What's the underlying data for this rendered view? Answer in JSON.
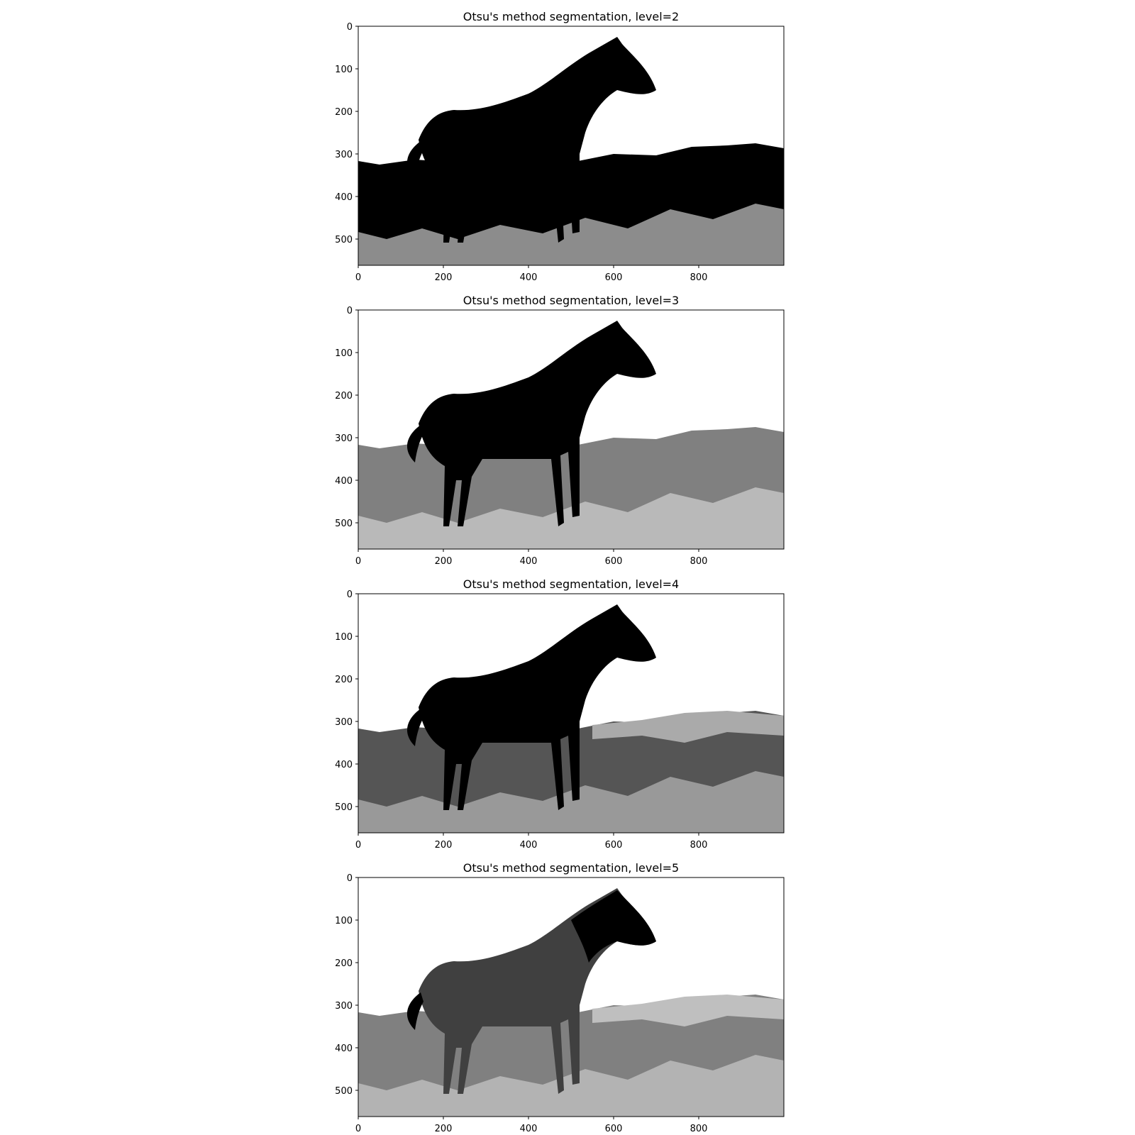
{
  "chart_data": [
    {
      "type": "image",
      "title": "Otsu's method segmentation, level=2",
      "xticks": [
        0,
        200,
        400,
        600,
        800
      ],
      "yticks": [
        0,
        100,
        200,
        300,
        400,
        500
      ],
      "xlim": [
        0,
        1000
      ],
      "ylim": [
        562,
        0
      ],
      "levels": 2,
      "gray_values": [
        "#000000",
        "#ffffff"
      ]
    },
    {
      "type": "image",
      "title": "Otsu's method segmentation, level=3",
      "xticks": [
        0,
        200,
        400,
        600,
        800
      ],
      "yticks": [
        0,
        100,
        200,
        300,
        400,
        500
      ],
      "xlim": [
        0,
        1000
      ],
      "ylim": [
        562,
        0
      ],
      "levels": 3,
      "gray_values": [
        "#000000",
        "#808080",
        "#ffffff"
      ]
    },
    {
      "type": "image",
      "title": "Otsu's method segmentation, level=4",
      "xticks": [
        0,
        200,
        400,
        600,
        800
      ],
      "yticks": [
        0,
        100,
        200,
        300,
        400,
        500
      ],
      "xlim": [
        0,
        1000
      ],
      "ylim": [
        562,
        0
      ],
      "levels": 4,
      "gray_values": [
        "#000000",
        "#555555",
        "#aaaaaa",
        "#ffffff"
      ]
    },
    {
      "type": "image",
      "title": "Otsu's method segmentation, level=5",
      "xticks": [
        0,
        200,
        400,
        600,
        800
      ],
      "yticks": [
        0,
        100,
        200,
        300,
        400,
        500
      ],
      "xlim": [
        0,
        1000
      ],
      "ylim": [
        562,
        0
      ],
      "levels": 5,
      "gray_values": [
        "#000000",
        "#404040",
        "#808080",
        "#bfbfbf",
        "#ffffff"
      ]
    }
  ]
}
